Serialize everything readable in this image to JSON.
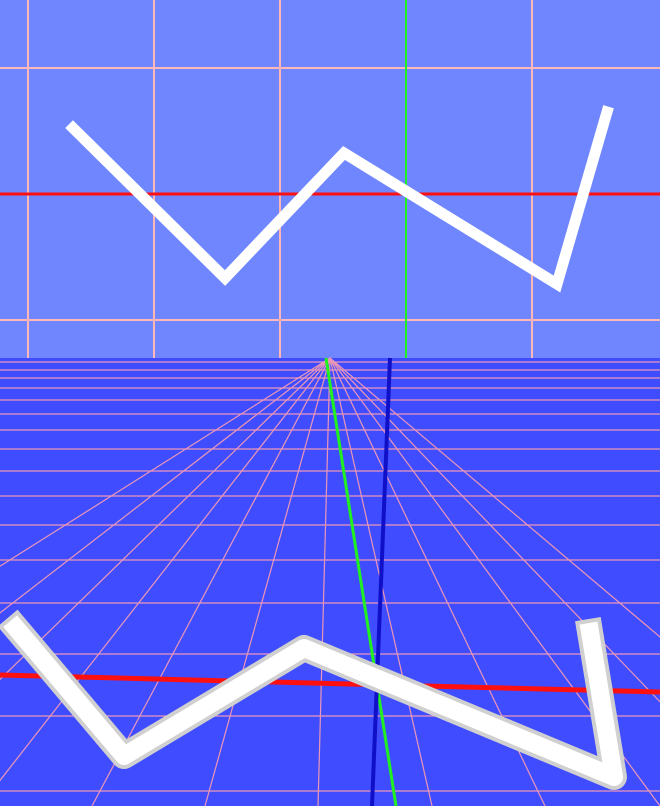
{
  "scene": {
    "colors": {
      "upper_background": "#6f86ff",
      "lower_background": "#3f4cff",
      "grid_line": "#ffb6b6",
      "x_axis": "#ff1010",
      "y_axis": "#21f021",
      "z_axis": "#1010c8",
      "polyline": "#ffffff",
      "tube_shadow": "#d0d0d0"
    },
    "upper_view": {
      "name": "front-orthographic-view",
      "polyline_points": [
        [
          -6.6,
          1.4
        ],
        [
          -3.6,
          -1.6
        ],
        [
          -1.2,
          0.8
        ],
        [
          3.0,
          -1.8
        ],
        [
          4.2,
          1.6
        ]
      ]
    },
    "lower_view": {
      "name": "perspective-floor-view",
      "polyline_points": [
        [
          -6.6,
          1.4
        ],
        [
          -3.6,
          -1.6
        ],
        [
          -1.2,
          0.8
        ],
        [
          3.0,
          -1.8
        ],
        [
          4.2,
          1.6
        ]
      ]
    }
  }
}
